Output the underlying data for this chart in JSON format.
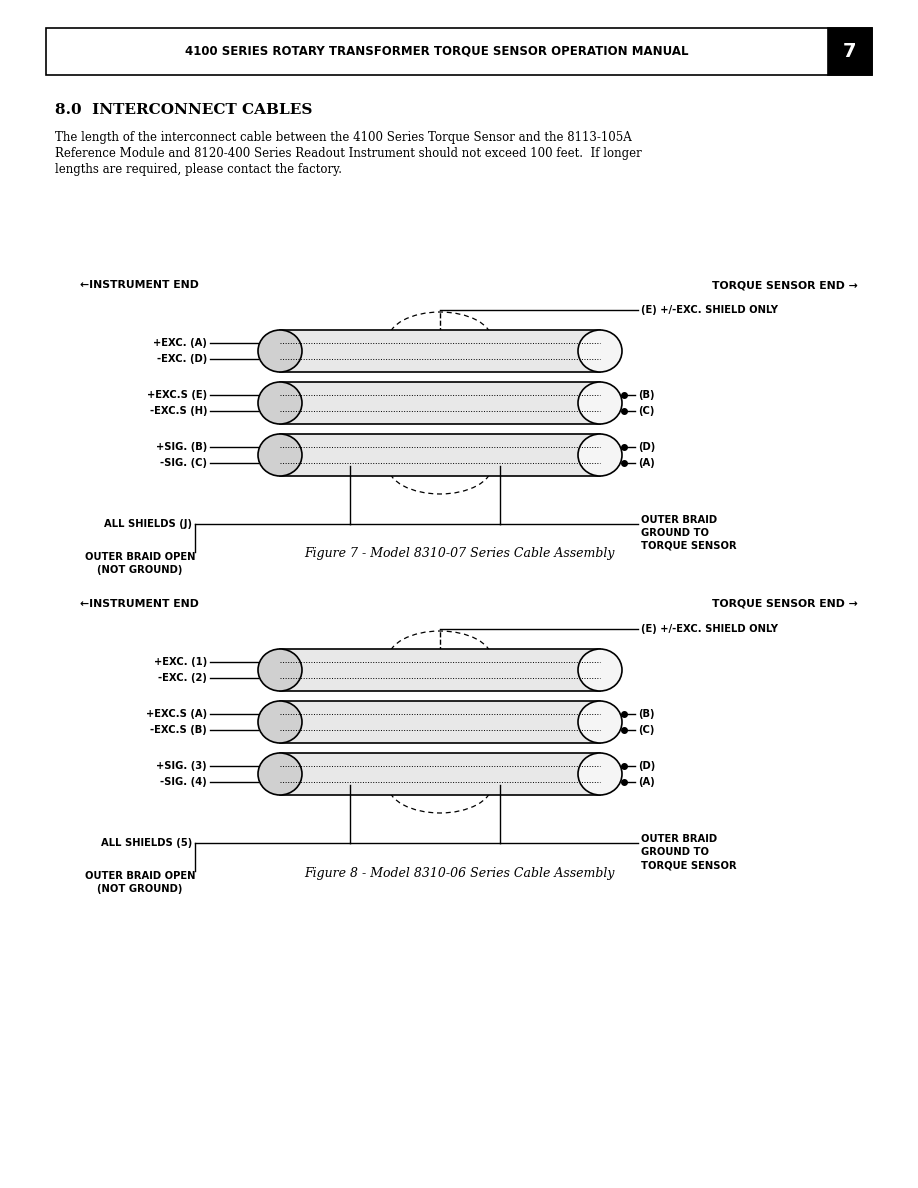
{
  "page_title": "4100 SERIES ROTARY TRANSFORMER TORQUE SENSOR OPERATION MANUAL",
  "page_number": "7",
  "section_title": "8.0  INTERCONNECT CABLES",
  "body_line1": "The length of the interconnect cable between the 4100 Series Torque Sensor and the 8113-105A",
  "body_line2": "Reference Module and 8120-400 Series Readout Instrument should not exceed 100 feet.  If longer",
  "body_line3": "lengths are required, please contact the factory.",
  "fig1_caption": "Figure 7 - Model 8310-07 Series Cable Assembly",
  "fig2_caption": "Figure 8 - Model 8310-06 Series Cable Assembly",
  "left_label": "←INSTRUMENT END",
  "right_label": "TORQUE SENSOR END →",
  "fig1_left_wires": [
    "+EXC. (A)",
    "-EXC. (D)",
    "+EXC.S (E)",
    "-EXC.S (H)",
    "+SIG. (B)",
    "-SIG. (C)"
  ],
  "fig1_right_wires": [
    "(B)",
    "(C)",
    "(D)",
    "(A)"
  ],
  "fig1_shield_label": "(E) +/-EXC. SHIELD ONLY",
  "fig1_all_shields": "ALL SHIELDS (J)",
  "fig2_left_wires": [
    "+EXC. (1)",
    "-EXC. (2)",
    "+EXC.S (A)",
    "-EXC.S (B)",
    "+SIG. (3)",
    "-SIG. (4)"
  ],
  "fig2_right_wires": [
    "(B)",
    "(C)",
    "(D)",
    "(A)"
  ],
  "fig2_shield_label": "(E) +/-EXC. SHIELD ONLY",
  "fig2_all_shields": "ALL SHIELDS (5)",
  "outer_braid_open": "OUTER BRAID OPEN",
  "not_ground": "(NOT GROUND)",
  "outer_braid_right1": "OUTER BRAID",
  "outer_braid_right2": "GROUND TO",
  "outer_braid_right3": "TORQUE SENSOR",
  "bg_color": "#ffffff",
  "line_color": "#000000",
  "text_color": "#000000"
}
